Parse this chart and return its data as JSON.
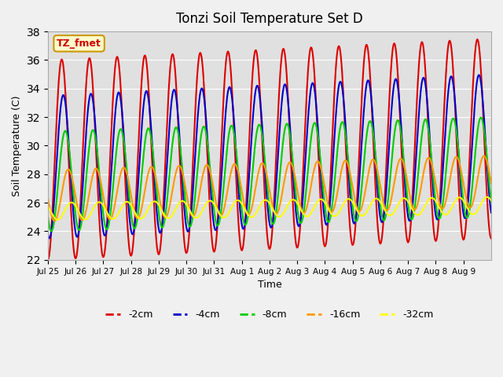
{
  "title": "Tonzi Soil Temperature Set D",
  "xlabel": "Time",
  "ylabel": "Soil Temperature (C)",
  "ylim": [
    22,
    38
  ],
  "plot_bg_color": "#e0e0e0",
  "fig_bg_color": "#f0f0f0",
  "annotation_text": "TZ_fmet",
  "annotation_color": "#cc0000",
  "annotation_bg": "#ffffcc",
  "annotation_border": "#cc9900",
  "lines": {
    "-2cm": {
      "color": "#dd0000",
      "linewidth": 1.5
    },
    "-4cm": {
      "color": "#0000cc",
      "linewidth": 1.5
    },
    "-8cm": {
      "color": "#00cc00",
      "linewidth": 1.5
    },
    "-16cm": {
      "color": "#ff9900",
      "linewidth": 1.5
    },
    "-32cm": {
      "color": "#ffff00",
      "linewidth": 1.5
    }
  },
  "xtick_labels": [
    "Jul 25",
    "Jul 26",
    "Jul 27",
    "Jul 28",
    "Jul 29",
    "Jul 30",
    "Jul 31",
    "Aug 1",
    "Aug 2",
    "Aug 3",
    "Aug 4",
    "Aug 5",
    "Aug 6",
    "Aug 7",
    "Aug 8",
    "Aug 9"
  ],
  "ytick_values": [
    22,
    24,
    26,
    28,
    30,
    32,
    34,
    36,
    38
  ],
  "n_days": 16,
  "amp_2cm": 7.0,
  "amp_4cm": 5.0,
  "amp_8cm": 3.5,
  "amp_16cm": 1.8,
  "amp_32cm": 0.6,
  "phase_2cm": 0.0,
  "phase_4cm": 0.35,
  "phase_8cm": 0.8,
  "phase_16cm": 1.5,
  "phase_32cm": 2.2,
  "mean_2cm": [
    29.0,
    30.5
  ],
  "mean_4cm": [
    28.5,
    30.0
  ],
  "mean_8cm": [
    27.5,
    28.5
  ],
  "mean_16cm": [
    26.5,
    27.5
  ],
  "mean_32cm": [
    25.4,
    25.8
  ]
}
